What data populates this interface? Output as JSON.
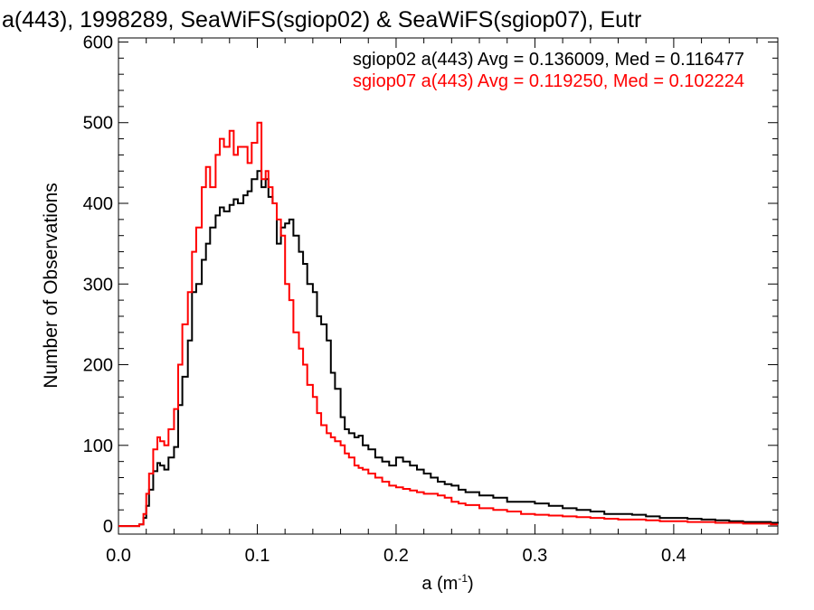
{
  "chart_data": {
    "type": "line",
    "title": "a(443), 1998289, SeaWiFS(sgiop02) & SeaWiFS(sgiop07), Eutr",
    "xlabel": "a (m",
    "xlabel_sup": "-1",
    "xlabel_tail": ")",
    "ylabel": "Number of Observations",
    "xlim": [
      0.0,
      0.475
    ],
    "ylim": [
      -10,
      605
    ],
    "xticks": [
      0.0,
      0.1,
      0.2,
      0.3,
      0.4
    ],
    "xtick_labels": [
      "0.0",
      "0.1",
      "0.2",
      "0.3",
      "0.4"
    ],
    "yticks": [
      0,
      100,
      200,
      300,
      400,
      500,
      600
    ],
    "ytick_labels": [
      "0",
      "100",
      "200",
      "300",
      "400",
      "500",
      "600"
    ],
    "grid": false,
    "legend_position": "top-right",
    "series": [
      {
        "name": "sgiop02 a(443)",
        "legend": "sgiop02 a(443) Avg = 0.136009, Med = 0.116477",
        "color": "#000000",
        "x": [
          0.0,
          0.01,
          0.015,
          0.018,
          0.02,
          0.022,
          0.025,
          0.028,
          0.03,
          0.033,
          0.036,
          0.04,
          0.043,
          0.046,
          0.05,
          0.053,
          0.056,
          0.06,
          0.063,
          0.066,
          0.07,
          0.073,
          0.076,
          0.08,
          0.083,
          0.086,
          0.09,
          0.093,
          0.096,
          0.1,
          0.103,
          0.106,
          0.108,
          0.111,
          0.114,
          0.117,
          0.12,
          0.123,
          0.126,
          0.13,
          0.133,
          0.136,
          0.14,
          0.143,
          0.146,
          0.15,
          0.153,
          0.156,
          0.16,
          0.163,
          0.166,
          0.17,
          0.173,
          0.176,
          0.18,
          0.185,
          0.19,
          0.195,
          0.2,
          0.205,
          0.21,
          0.215,
          0.22,
          0.225,
          0.23,
          0.235,
          0.24,
          0.245,
          0.25,
          0.26,
          0.27,
          0.28,
          0.29,
          0.3,
          0.31,
          0.32,
          0.33,
          0.34,
          0.35,
          0.36,
          0.37,
          0.38,
          0.39,
          0.4,
          0.41,
          0.42,
          0.43,
          0.44,
          0.45,
          0.46,
          0.47,
          0.475
        ],
        "y": [
          0,
          0,
          2,
          10,
          25,
          45,
          68,
          78,
          75,
          70,
          85,
          98,
          150,
          185,
          230,
          290,
          300,
          330,
          350,
          370,
          385,
          395,
          390,
          398,
          405,
          400,
          410,
          415,
          430,
          440,
          420,
          430,
          408,
          400,
          350,
          370,
          375,
          380,
          360,
          340,
          325,
          300,
          290,
          260,
          250,
          230,
          190,
          170,
          135,
          120,
          115,
          110,
          112,
          100,
          95,
          85,
          80,
          75,
          85,
          80,
          75,
          70,
          65,
          60,
          55,
          52,
          50,
          45,
          42,
          38,
          35,
          30,
          30,
          28,
          25,
          22,
          20,
          18,
          15,
          15,
          14,
          12,
          10,
          10,
          9,
          8,
          7,
          6,
          5,
          5,
          4,
          3
        ]
      },
      {
        "name": "sgiop07 a(443)",
        "legend": "sgiop07 a(443) Avg = 0.119250, Med = 0.102224",
        "color": "#ff0000",
        "x": [
          0.0,
          0.01,
          0.015,
          0.018,
          0.02,
          0.022,
          0.025,
          0.028,
          0.03,
          0.033,
          0.036,
          0.04,
          0.043,
          0.046,
          0.05,
          0.053,
          0.056,
          0.06,
          0.063,
          0.066,
          0.07,
          0.073,
          0.076,
          0.08,
          0.083,
          0.086,
          0.09,
          0.093,
          0.096,
          0.1,
          0.103,
          0.106,
          0.108,
          0.111,
          0.114,
          0.117,
          0.12,
          0.123,
          0.126,
          0.13,
          0.133,
          0.136,
          0.14,
          0.143,
          0.146,
          0.15,
          0.153,
          0.156,
          0.16,
          0.163,
          0.166,
          0.17,
          0.173,
          0.176,
          0.18,
          0.185,
          0.19,
          0.195,
          0.2,
          0.205,
          0.21,
          0.215,
          0.22,
          0.225,
          0.23,
          0.235,
          0.24,
          0.245,
          0.25,
          0.26,
          0.27,
          0.28,
          0.29,
          0.3,
          0.31,
          0.32,
          0.33,
          0.34,
          0.35,
          0.36,
          0.37,
          0.38,
          0.39,
          0.4,
          0.41,
          0.42,
          0.43,
          0.44,
          0.45,
          0.46,
          0.47,
          0.475
        ],
        "y": [
          0,
          0,
          2,
          15,
          40,
          65,
          95,
          110,
          105,
          100,
          120,
          145,
          200,
          250,
          290,
          340,
          370,
          420,
          445,
          420,
          460,
          480,
          470,
          490,
          460,
          470,
          470,
          450,
          475,
          500,
          430,
          440,
          420,
          400,
          380,
          360,
          300,
          280,
          240,
          220,
          200,
          175,
          160,
          140,
          125,
          115,
          110,
          105,
          100,
          90,
          85,
          75,
          72,
          70,
          65,
          60,
          55,
          50,
          48,
          46,
          44,
          42,
          40,
          40,
          38,
          35,
          30,
          28,
          26,
          22,
          20,
          18,
          15,
          14,
          13,
          12,
          11,
          10,
          9,
          8,
          8,
          7,
          6,
          6,
          5,
          5,
          4,
          4,
          3,
          3,
          2,
          2
        ]
      }
    ]
  }
}
